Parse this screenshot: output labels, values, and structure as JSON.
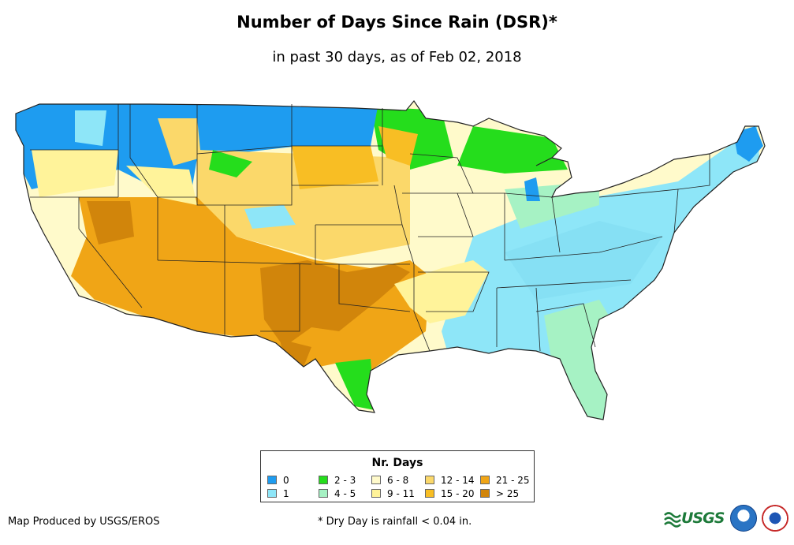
{
  "header": {
    "title": "Number of Days Since Rain (DSR)*",
    "subtitle": "in past 30 days, as of Feb 02, 2018"
  },
  "legend": {
    "title": "Nr. Days",
    "items": [
      {
        "label": "0",
        "color": "#1e9cf0"
      },
      {
        "label": "1",
        "color": "#8ee6f8"
      },
      {
        "label": "2 - 3",
        "color": "#25dd1c"
      },
      {
        "label": "4 - 5",
        "color": "#a6f2c4"
      },
      {
        "label": "6 - 8",
        "color": "#fffacb"
      },
      {
        "label": "9 - 11",
        "color": "#fff39a"
      },
      {
        "label": "12 - 14",
        "color": "#fbd86a"
      },
      {
        "label": "15 - 20",
        "color": "#f8be24"
      },
      {
        "label": "21 - 25",
        "color": "#f0a516"
      },
      {
        "label": "> 25",
        "color": "#d1850b"
      }
    ]
  },
  "footer": {
    "credit": "Map Produced by USGS/EROS",
    "footnote": "* Dry Day is rainfall < 0.04 in."
  },
  "logos": {
    "usgs": "USGS",
    "usgs_icon": "usgs-wave-logo",
    "noaa_icon": "noaa-logo",
    "nws_icon": "nws-logo"
  }
}
